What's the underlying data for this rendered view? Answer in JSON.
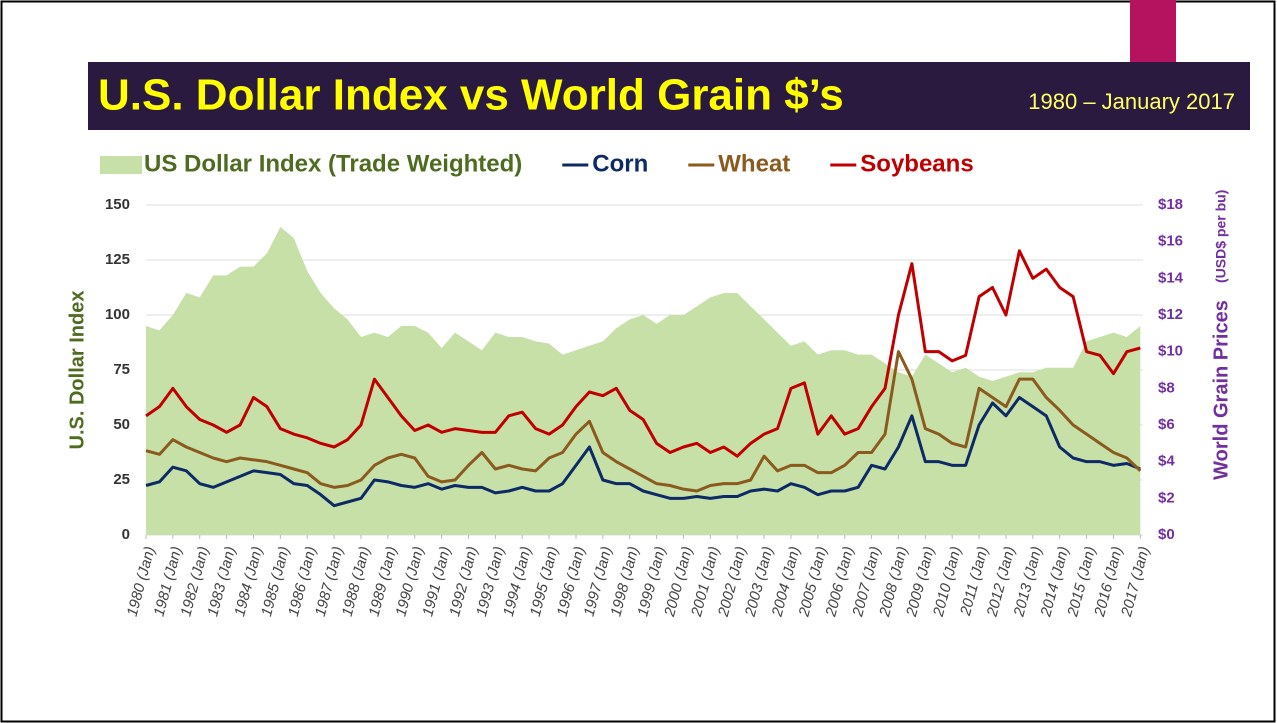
{
  "chart_data": {
    "type": "combo",
    "title": "U.S. Dollar Index vs World Grain $’s",
    "subtitle": "1980 – January 2017",
    "ylabel": "U.S. Dollar Index",
    "y2label": "World Grain Prices",
    "y2label_unit": "(USD$ per bu)",
    "grid": true,
    "legend": "top",
    "ylim": [
      0,
      150
    ],
    "yticks": [
      0,
      25,
      50,
      75,
      100,
      125,
      150
    ],
    "y2lim": [
      0,
      18
    ],
    "y2ticks": [
      {
        "value": 0,
        "label": "$0"
      },
      {
        "value": 2,
        "label": "$2"
      },
      {
        "value": 4,
        "label": "$4"
      },
      {
        "value": 6,
        "label": "$6"
      },
      {
        "value": 8,
        "label": "$8"
      },
      {
        "value": 10,
        "label": "$10"
      },
      {
        "value": 12,
        "label": "$12"
      },
      {
        "value": 14,
        "label": "$14"
      },
      {
        "value": 16,
        "label": "$16"
      },
      {
        "value": 18,
        "label": "$18"
      }
    ],
    "xlim": [
      1980,
      2017.1
    ],
    "xticks": [
      {
        "value": 1980,
        "label": "1980 (Jan)"
      },
      {
        "value": 1981,
        "label": "1981 (Jan)"
      },
      {
        "value": 1982,
        "label": "1982 (Jan)"
      },
      {
        "value": 1983,
        "label": "1983 (Jan)"
      },
      {
        "value": 1984,
        "label": "1984 (Jan)"
      },
      {
        "value": 1985,
        "label": "1985 (Jan)"
      },
      {
        "value": 1986,
        "label": "1986 (Jan)"
      },
      {
        "value": 1987,
        "label": "1987 (Jan)"
      },
      {
        "value": 1988,
        "label": "1988 (Jan)"
      },
      {
        "value": 1989,
        "label": "1989 (Jan)"
      },
      {
        "value": 1990,
        "label": "1990 (Jan)"
      },
      {
        "value": 1991,
        "label": "1991 (Jan)"
      },
      {
        "value": 1992,
        "label": "1992 (Jan)"
      },
      {
        "value": 1993,
        "label": "1993 (Jan)"
      },
      {
        "value": 1994,
        "label": "1994 (Jan)"
      },
      {
        "value": 1995,
        "label": "1995 (Jan)"
      },
      {
        "value": 1996,
        "label": "1996 (Jan)"
      },
      {
        "value": 1997,
        "label": "1997 (Jan)"
      },
      {
        "value": 1998,
        "label": "1998 (Jan)"
      },
      {
        "value": 1999,
        "label": "1999 (Jan)"
      },
      {
        "value": 2000,
        "label": "2000 (Jan)"
      },
      {
        "value": 2001,
        "label": "2001 (Jan)"
      },
      {
        "value": 2002,
        "label": "2002 (Jan)"
      },
      {
        "value": 2003,
        "label": "2003 (Jan)"
      },
      {
        "value": 2004,
        "label": "2004 (Jan)"
      },
      {
        "value": 2005,
        "label": "2005 (Jan)"
      },
      {
        "value": 2006,
        "label": "2006 (Jan)"
      },
      {
        "value": 2007,
        "label": "2007 (Jan)"
      },
      {
        "value": 2008,
        "label": "2008 (Jan)"
      },
      {
        "value": 2009,
        "label": "2009 (Jan)"
      },
      {
        "value": 2010,
        "label": "2010 (Jan)"
      },
      {
        "value": 2011,
        "label": "2011 (Jan)"
      },
      {
        "value": 2012,
        "label": "2012 (Jan)"
      },
      {
        "value": 2013,
        "label": "2013 (Jan)"
      },
      {
        "value": 2014,
        "label": "2014 (Jan)"
      },
      {
        "value": 2015,
        "label": "2015 (Jan)"
      },
      {
        "value": 2016,
        "label": "2016 (Jan)"
      },
      {
        "value": 2017,
        "label": "2017 (Jan)"
      }
    ],
    "x": [
      1980,
      1980.5,
      1981,
      1981.5,
      1982,
      1982.5,
      1983,
      1983.5,
      1984,
      1984.5,
      1985,
      1985.5,
      1986,
      1986.5,
      1987,
      1987.5,
      1988,
      1988.5,
      1989,
      1989.5,
      1990,
      1990.5,
      1991,
      1991.5,
      1992,
      1992.5,
      1993,
      1993.5,
      1994,
      1994.5,
      1995,
      1995.5,
      1996,
      1996.5,
      1997,
      1997.5,
      1998,
      1998.5,
      1999,
      1999.5,
      2000,
      2000.5,
      2001,
      2001.5,
      2002,
      2002.5,
      2003,
      2003.5,
      2004,
      2004.5,
      2005,
      2005.5,
      2006,
      2006.5,
      2007,
      2007.5,
      2008,
      2008.5,
      2009,
      2009.5,
      2010,
      2010.5,
      2011,
      2011.5,
      2012,
      2012.5,
      2013,
      2013.5,
      2014,
      2014.5,
      2015,
      2015.5,
      2016,
      2016.5,
      2017
    ],
    "series": [
      {
        "name": "US Dollar Index (Trade Weighted)",
        "type": "area",
        "color": "#c6e0a8",
        "text_color": "#4e6b1f",
        "values": [
          95,
          93,
          100,
          110,
          108,
          118,
          118,
          122,
          122,
          128,
          140,
          135,
          120,
          110,
          103,
          98,
          90,
          92,
          90,
          95,
          95,
          92,
          85,
          92,
          88,
          84,
          92,
          90,
          90,
          88,
          87,
          82,
          84,
          86,
          88,
          94,
          98,
          100,
          96,
          100,
          100,
          104,
          108,
          110,
          110,
          104,
          98,
          92,
          86,
          88,
          82,
          84,
          84,
          82,
          82,
          78,
          74,
          72,
          82,
          78,
          74,
          76,
          72,
          70,
          72,
          74,
          74,
          76,
          76,
          76,
          88,
          90,
          92,
          90,
          95
        ]
      },
      {
        "name": "Corn",
        "type": "line",
        "axis": "y2",
        "color": "#0d2a66",
        "values": [
          2.7,
          2.9,
          3.7,
          3.5,
          2.8,
          2.6,
          2.9,
          3.2,
          3.5,
          3.4,
          3.3,
          2.8,
          2.7,
          2.2,
          1.6,
          1.8,
          2.0,
          3.0,
          2.9,
          2.7,
          2.6,
          2.8,
          2.5,
          2.7,
          2.6,
          2.6,
          2.3,
          2.4,
          2.6,
          2.4,
          2.4,
          2.8,
          3.8,
          4.8,
          3.0,
          2.8,
          2.8,
          2.4,
          2.2,
          2.0,
          2.0,
          2.1,
          2.0,
          2.1,
          2.1,
          2.4,
          2.5,
          2.4,
          2.8,
          2.6,
          2.2,
          2.4,
          2.4,
          2.6,
          3.8,
          3.6,
          4.8,
          6.5,
          4.0,
          4.0,
          3.8,
          3.8,
          6.0,
          7.2,
          6.5,
          7.5,
          7.0,
          6.5,
          4.8,
          4.2,
          4.0,
          4.0,
          3.8,
          3.9,
          3.6
        ]
      },
      {
        "name": "Wheat",
        "type": "line",
        "axis": "y2",
        "color": "#8b5a1e",
        "values": [
          4.6,
          4.4,
          5.2,
          4.8,
          4.5,
          4.2,
          4.0,
          4.2,
          4.1,
          4.0,
          3.8,
          3.6,
          3.4,
          2.8,
          2.6,
          2.7,
          3.0,
          3.8,
          4.2,
          4.4,
          4.2,
          3.2,
          2.9,
          3.0,
          3.8,
          4.5,
          3.6,
          3.8,
          3.6,
          3.5,
          4.2,
          4.5,
          5.5,
          6.2,
          4.5,
          4.0,
          3.6,
          3.2,
          2.8,
          2.7,
          2.5,
          2.4,
          2.7,
          2.8,
          2.8,
          3.0,
          4.3,
          3.5,
          3.8,
          3.8,
          3.4,
          3.4,
          3.8,
          4.5,
          4.5,
          5.5,
          10.0,
          8.5,
          5.8,
          5.5,
          5.0,
          4.8,
          8.0,
          7.5,
          7.0,
          8.5,
          8.5,
          7.5,
          6.8,
          6.0,
          5.5,
          5.0,
          4.5,
          4.2,
          3.5
        ]
      },
      {
        "name": "Soybeans",
        "type": "line",
        "axis": "y2",
        "color": "#c00000",
        "values": [
          6.5,
          7.0,
          8.0,
          7.0,
          6.3,
          6.0,
          5.6,
          6.0,
          7.5,
          7.0,
          5.8,
          5.5,
          5.3,
          5.0,
          4.8,
          5.2,
          6.0,
          8.5,
          7.5,
          6.5,
          5.7,
          6.0,
          5.6,
          5.8,
          5.7,
          5.6,
          5.6,
          6.5,
          6.7,
          5.8,
          5.5,
          6.0,
          7.0,
          7.8,
          7.6,
          8.0,
          6.8,
          6.3,
          5.0,
          4.5,
          4.8,
          5.0,
          4.5,
          4.8,
          4.3,
          5.0,
          5.5,
          5.8,
          8.0,
          8.3,
          5.5,
          6.5,
          5.5,
          5.8,
          7.0,
          8.0,
          12.0,
          14.8,
          10.0,
          10.0,
          9.5,
          9.8,
          13.0,
          13.5,
          12.0,
          15.5,
          14.0,
          14.5,
          13.5,
          13.0,
          10.0,
          9.8,
          8.8,
          10.0,
          10.2
        ]
      }
    ]
  }
}
